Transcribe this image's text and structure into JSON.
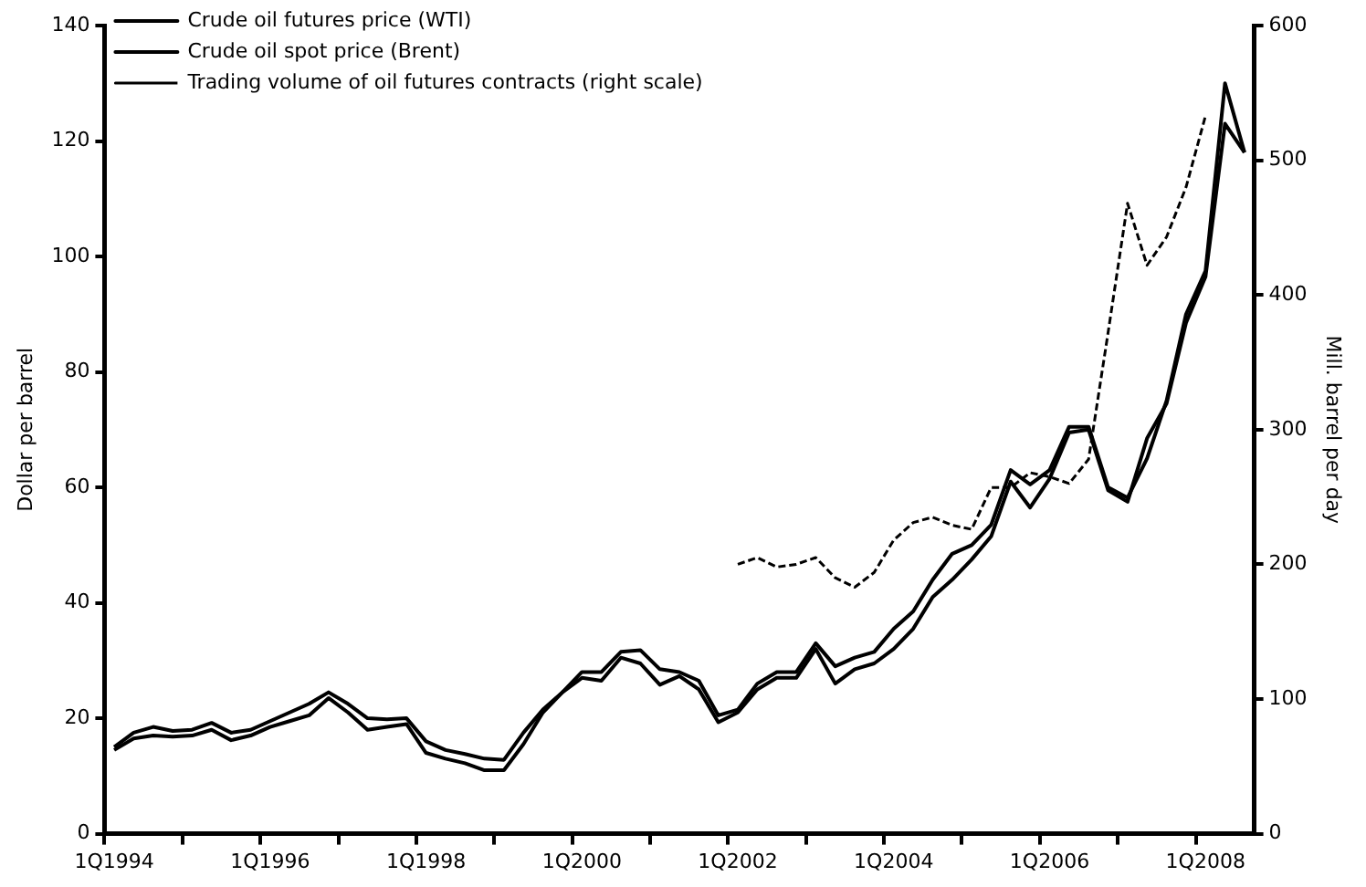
{
  "chart_data": {
    "type": "line",
    "xlabel": null,
    "ylabel": "Dollar per barrel",
    "y2label": "Mill. barrel per day",
    "categories": [
      "1Q1994",
      null,
      null,
      null,
      null,
      null,
      null,
      null,
      "1Q1996",
      null,
      null,
      null,
      null,
      null,
      null,
      null,
      "1Q1998",
      null,
      null,
      null,
      null,
      null,
      null,
      null,
      "1Q2000",
      null,
      null,
      null,
      null,
      null,
      null,
      null,
      "1Q2002",
      null,
      null,
      null,
      null,
      null,
      null,
      null,
      "1Q2004",
      null,
      null,
      null,
      null,
      null,
      null,
      null,
      "1Q2006",
      null,
      null,
      null,
      null,
      null,
      null,
      null,
      "1Q2008",
      null,
      null
    ],
    "series": [
      {
        "name": "Crude oil futures price (WTI)",
        "color": "#000000",
        "line_style": "solid",
        "values": [
          15,
          17.5,
          18.5,
          17.8,
          18,
          19.2,
          17.5,
          18,
          19.5,
          21,
          22.5,
          24.5,
          22.5,
          20,
          19.8,
          20,
          16,
          14.5,
          13.8,
          13,
          12.8,
          17.5,
          21.5,
          24.5,
          28,
          28,
          31.5,
          31.8,
          28.5,
          28,
          26.5,
          20.5,
          21.5,
          26,
          28,
          28,
          33,
          29,
          30.5,
          31.5,
          35.5,
          38.5,
          44,
          48.5,
          50,
          53.5,
          63,
          60.5,
          63,
          70.5,
          70.5,
          60,
          58.2,
          65,
          75,
          90,
          97.5,
          130,
          118
        ]
      },
      {
        "name": "Crude oil spot price (Brent)",
        "color": "#000000",
        "line_style": "solid",
        "values": [
          14.5,
          16.5,
          17,
          16.8,
          17,
          18,
          16.2,
          17,
          18.5,
          19.5,
          20.5,
          23.5,
          21,
          18,
          18.5,
          19,
          14,
          13,
          12.2,
          11,
          11,
          15.5,
          21,
          24.5,
          27,
          26.5,
          30.5,
          29.5,
          25.8,
          27.3,
          25,
          19.3,
          21,
          25,
          27,
          27,
          32,
          26,
          28.5,
          29.5,
          32,
          35.5,
          41,
          44,
          47.5,
          51.5,
          61,
          56.5,
          61.5,
          69.5,
          70,
          59.5,
          57.5,
          68.5,
          74.5,
          88.5,
          96.5,
          123,
          118
        ]
      },
      {
        "name": "Trading volume of oil futures contracts (right scale)",
        "color": "#000000",
        "line_style": "dashed",
        "axis": "y2",
        "values": [
          null,
          null,
          null,
          null,
          null,
          null,
          null,
          null,
          null,
          null,
          null,
          null,
          null,
          null,
          null,
          null,
          null,
          null,
          null,
          null,
          null,
          null,
          null,
          null,
          null,
          null,
          null,
          null,
          null,
          null,
          null,
          null,
          200,
          205,
          198,
          200,
          205,
          190,
          183,
          194,
          218,
          231,
          235,
          229,
          226,
          257,
          257,
          268,
          265,
          260,
          278,
          372,
          468,
          422,
          443,
          480,
          533,
          null,
          null
        ]
      }
    ],
    "ylim": [
      0,
      140
    ],
    "yticks": [
      0,
      20,
      40,
      60,
      80,
      100,
      120,
      140
    ],
    "y2lim": [
      0,
      600
    ],
    "y2ticks": [
      0,
      100,
      200,
      300,
      400,
      500,
      600
    ],
    "grid": false,
    "legend": "top left",
    "marker": "none"
  }
}
